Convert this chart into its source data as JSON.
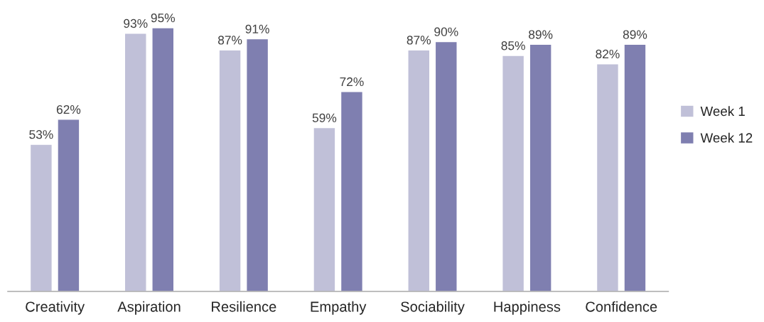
{
  "chart_data": {
    "type": "bar",
    "categories": [
      "Creativity",
      "Aspiration",
      "Resilience",
      "Empathy",
      "Sociability",
      "Happiness",
      "Confidence"
    ],
    "series": [
      {
        "name": "Week 1",
        "color": "#c0c0d8",
        "values": [
          53,
          93,
          87,
          59,
          87,
          85,
          82
        ],
        "value_labels": [
          "53%",
          "93%",
          "87%",
          "59%",
          "87%",
          "85%",
          "82%"
        ]
      },
      {
        "name": "Week 12",
        "color": "#7f7fb0",
        "values": [
          62,
          95,
          91,
          72,
          90,
          89,
          89
        ],
        "value_labels": [
          "62%",
          "95%",
          "91%",
          "72%",
          "90%",
          "89%",
          "89%"
        ]
      }
    ],
    "legend": "right",
    "grid": false
  }
}
